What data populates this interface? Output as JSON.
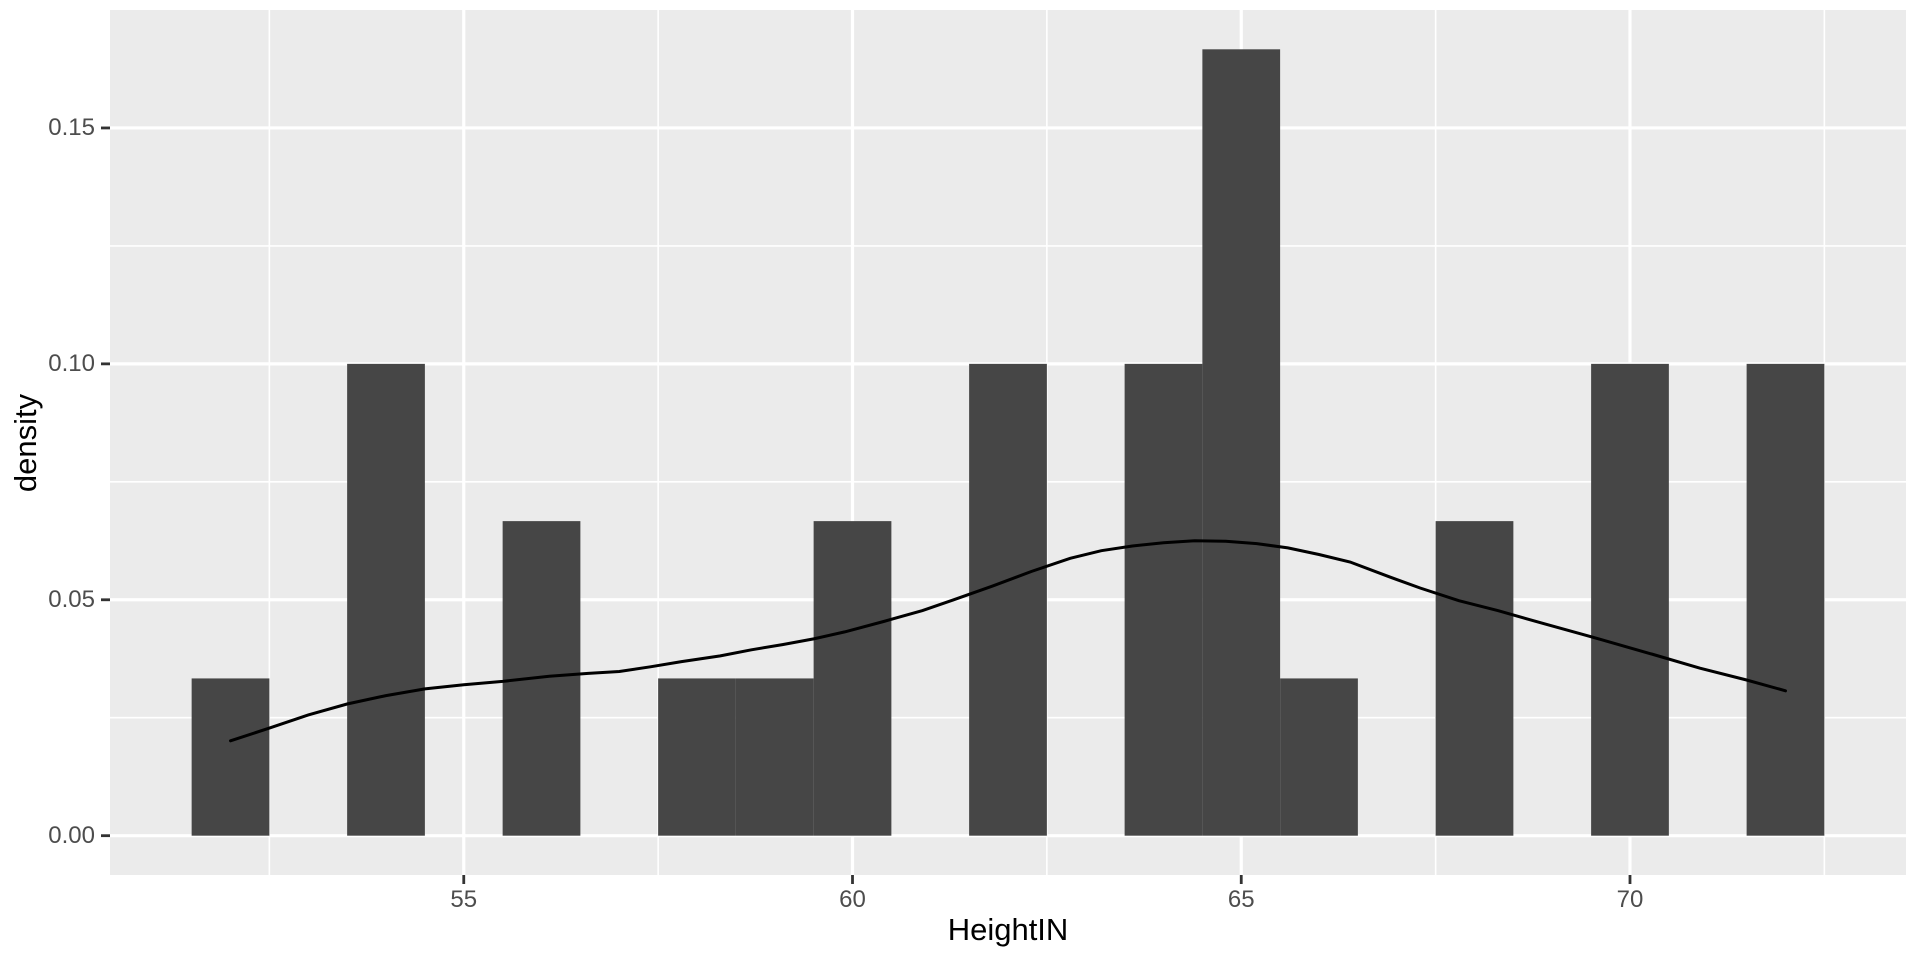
{
  "y_axis": {
    "title": "density",
    "ticks": [
      {
        "label": "0.00",
        "value": 0
      },
      {
        "label": "0.05",
        "value": 0.05
      },
      {
        "label": "0.10",
        "value": 0.1
      },
      {
        "label": "0.15",
        "value": 0.15
      }
    ]
  },
  "x_axis": {
    "title": "HeightIN",
    "ticks": [
      {
        "label": "55",
        "value": 55
      },
      {
        "label": "60",
        "value": 60
      },
      {
        "label": "65",
        "value": 65
      },
      {
        "label": "70",
        "value": 70
      }
    ]
  },
  "chart_data": {
    "type": "bar",
    "subtype": "histogram_with_density_curve",
    "title": "",
    "xlabel": "HeightIN",
    "ylabel": "density",
    "n_observations": 30,
    "binwidth": 1,
    "bins": [
      {
        "center": 52,
        "count": 1,
        "density": 0.03333
      },
      {
        "center": 54,
        "count": 3,
        "density": 0.1
      },
      {
        "center": 56,
        "count": 2,
        "density": 0.06667
      },
      {
        "center": 58,
        "count": 1,
        "density": 0.03333
      },
      {
        "center": 59,
        "count": 1,
        "density": 0.03333
      },
      {
        "center": 60,
        "count": 2,
        "density": 0.06667
      },
      {
        "center": 62,
        "count": 3,
        "density": 0.1
      },
      {
        "center": 64,
        "count": 3,
        "density": 0.1
      },
      {
        "center": 65,
        "count": 5,
        "density": 0.16667
      },
      {
        "center": 66,
        "count": 1,
        "density": 0.03333
      },
      {
        "center": 68,
        "count": 2,
        "density": 0.06667
      },
      {
        "center": 70,
        "count": 3,
        "density": 0.1
      },
      {
        "center": 72,
        "count": 3,
        "density": 0.1
      }
    ],
    "density_curve": [
      [
        52.0,
        0.0201
      ],
      [
        52.5,
        0.0228
      ],
      [
        53.0,
        0.0256
      ],
      [
        53.5,
        0.0279
      ],
      [
        54.0,
        0.0297
      ],
      [
        54.5,
        0.0311
      ],
      [
        55.0,
        0.032
      ],
      [
        55.5,
        0.0327
      ],
      [
        56.1,
        0.0338
      ],
      [
        56.6,
        0.0344
      ],
      [
        57.0,
        0.0348
      ],
      [
        57.4,
        0.0358
      ],
      [
        57.8,
        0.0369
      ],
      [
        58.3,
        0.0381
      ],
      [
        58.7,
        0.0394
      ],
      [
        59.1,
        0.0405
      ],
      [
        59.5,
        0.0417
      ],
      [
        59.9,
        0.0432
      ],
      [
        60.4,
        0.0454
      ],
      [
        60.9,
        0.0477
      ],
      [
        61.3,
        0.05
      ],
      [
        61.8,
        0.0529
      ],
      [
        62.3,
        0.056
      ],
      [
        62.8,
        0.0588
      ],
      [
        63.2,
        0.0604
      ],
      [
        63.6,
        0.0614
      ],
      [
        64.0,
        0.0621
      ],
      [
        64.4,
        0.0625
      ],
      [
        64.8,
        0.0624
      ],
      [
        65.2,
        0.0619
      ],
      [
        65.6,
        0.061
      ],
      [
        66.0,
        0.0596
      ],
      [
        66.4,
        0.058
      ],
      [
        66.9,
        0.0549
      ],
      [
        67.3,
        0.0525
      ],
      [
        67.8,
        0.0498
      ],
      [
        68.3,
        0.0477
      ],
      [
        68.9,
        0.0449
      ],
      [
        69.6,
        0.0417
      ],
      [
        70.3,
        0.0384
      ],
      [
        70.9,
        0.0355
      ],
      [
        71.5,
        0.033
      ],
      [
        72.0,
        0.0307
      ]
    ],
    "xlim": [
      50.45,
      73.55
    ],
    "ylim": [
      -0.0083333,
      0.175
    ],
    "x_major_gridlines": [
      55,
      60,
      65,
      70
    ],
    "x_minor_gridlines": [
      52.5,
      57.5,
      62.5,
      67.5,
      72.5
    ],
    "y_major_gridlines": [
      0,
      0.05,
      0.1,
      0.15
    ],
    "y_minor_gridlines": [
      0.025,
      0.075,
      0.125
    ],
    "grid": "on",
    "legend": "none",
    "colors": {
      "panel_background": "#EBEBEB",
      "bar_fill": "#464646",
      "gridline": "#FFFFFF",
      "curve": "#000000",
      "tick_mark": "#333333",
      "tick_label": "#4D4D4D",
      "axis_title": "#000000",
      "figure_background": "#FFFFFF"
    }
  }
}
